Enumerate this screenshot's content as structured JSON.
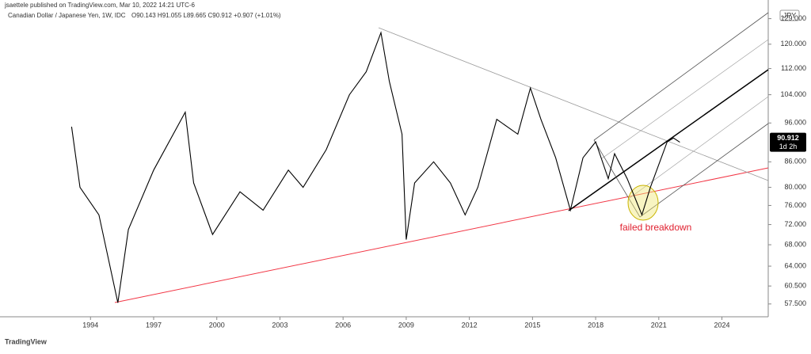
{
  "publisher": "jsaettele published on TradingView.com, Mar 10, 2022 14:21 UTC-6",
  "footer": "TradingView",
  "chart_data": {
    "type": "line",
    "title": "Canadian Dollar / Japanese Yen, 1W, IDC",
    "ohlc": "O90.143 H91.055 L89.665 C90.912 +0.907 (+1.01%)",
    "currency": "JPY",
    "countdown": "1d 2h",
    "annotation": "failed breakdown",
    "log_scale": true,
    "grid": false,
    "x": [
      1993.1,
      1993.5,
      1994.4,
      1995.3,
      1995.8,
      1997.0,
      1998.5,
      1998.9,
      1999.8,
      2001.1,
      2002.2,
      2003.4,
      2004.1,
      2005.2,
      2006.3,
      2007.1,
      2007.8,
      2008.2,
      2008.8,
      2009.0,
      2009.4,
      2010.3,
      2011.1,
      2011.8,
      2012.4,
      2013.3,
      2014.3,
      2014.9,
      2015.4,
      2016.1,
      2016.8,
      2017.4,
      2018.0,
      2018.6,
      2018.9,
      2019.5,
      2020.2,
      2020.6,
      2021.4,
      2021.7,
      2022.0
    ],
    "series": [
      {
        "name": "CADJPY",
        "color": "#000000",
        "values": [
          95,
          80,
          74,
          57.7,
          71,
          84,
          99,
          81,
          70,
          79,
          75,
          84,
          80,
          89,
          104,
          111,
          124,
          108,
          93,
          69,
          81,
          86,
          81,
          74,
          80,
          97,
          93,
          106,
          97,
          87,
          75,
          87,
          91,
          82,
          88,
          82,
          74,
          80,
          91,
          92,
          90.912
        ]
      }
    ],
    "xlim": [
      1989.7,
      2026.2
    ],
    "xticks": [
      1994,
      1997,
      2000,
      2003,
      2006,
      2009,
      2012,
      2015,
      2018,
      2021,
      2024
    ],
    "ylim": [
      55.7,
      136
    ],
    "yticks": [
      {
        "value": 57.5,
        "label": "57.500"
      },
      {
        "value": 60.5,
        "label": "60.500"
      },
      {
        "value": 64,
        "label": "64.000"
      },
      {
        "value": 68,
        "label": "68.000"
      },
      {
        "value": 72,
        "label": "72.000"
      },
      {
        "value": 76,
        "label": "76.000"
      },
      {
        "value": 80,
        "label": "80.000"
      },
      {
        "value": 86,
        "label": "86.000"
      },
      {
        "value": 96,
        "label": "96.000"
      },
      {
        "value": 104,
        "label": "104.000"
      },
      {
        "value": 112,
        "label": "112.000"
      },
      {
        "value": 120,
        "label": "120.000"
      },
      {
        "value": 129,
        "label": "129.000"
      }
    ]
  }
}
